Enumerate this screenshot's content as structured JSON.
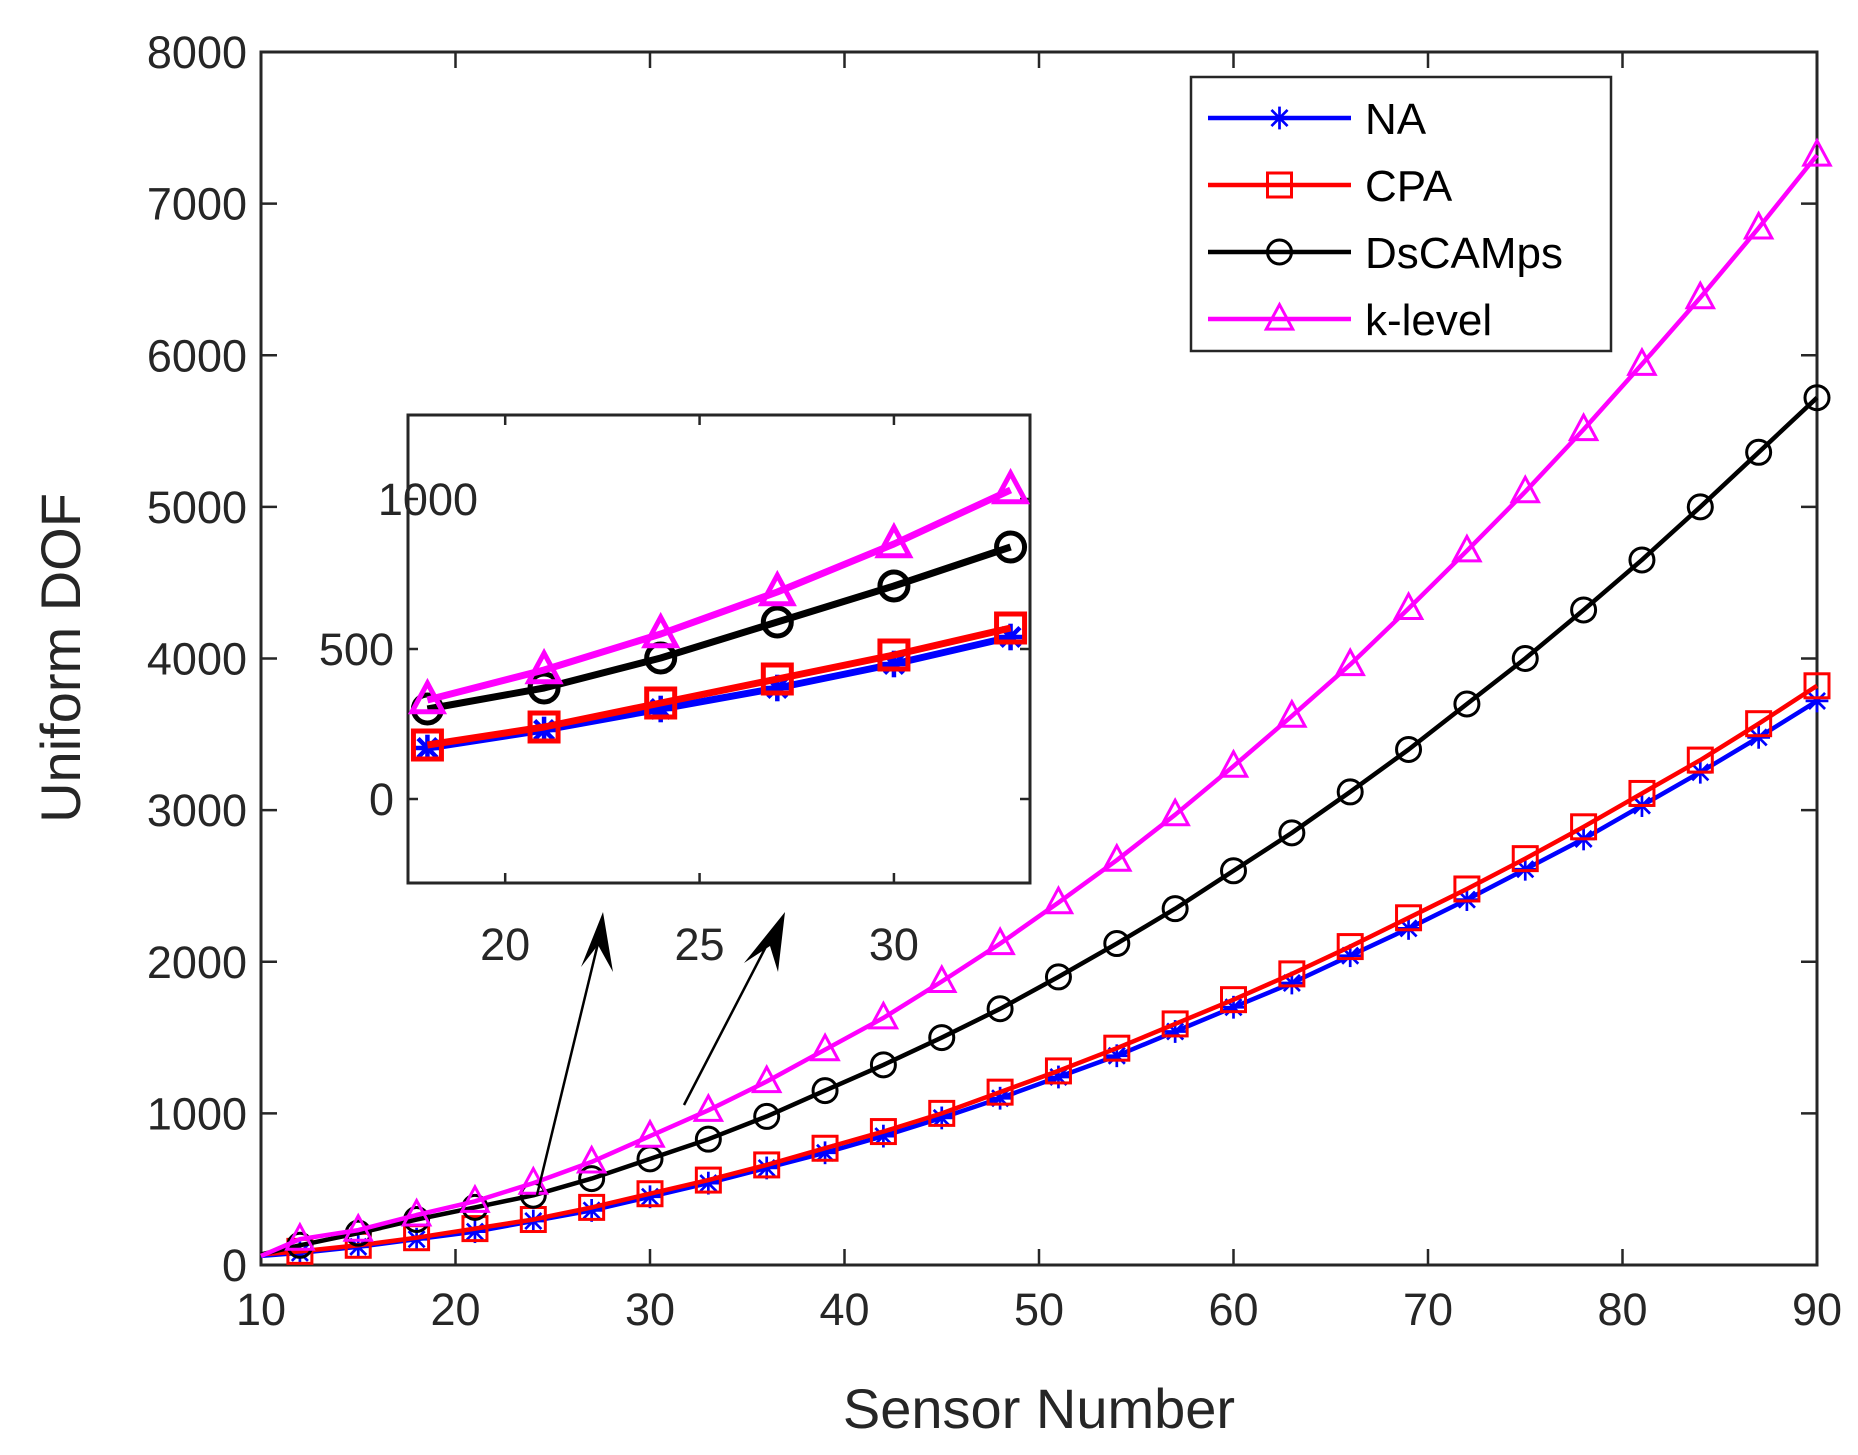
{
  "chart_data": {
    "type": "line",
    "xlabel": "Sensor Number",
    "ylabel": "Uniform DOF",
    "xlim": [
      10,
      90
    ],
    "ylim": [
      0,
      8000
    ],
    "xticks": [
      "10",
      "20",
      "30",
      "40",
      "50",
      "60",
      "70",
      "80",
      "90"
    ],
    "yticks": [
      "0",
      "1000",
      "2000",
      "3000",
      "4000",
      "5000",
      "6000",
      "7000",
      "8000"
    ],
    "legend_position": "top-right",
    "x": [
      10,
      12,
      15,
      18,
      21,
      24,
      27,
      30,
      33,
      36,
      39,
      42,
      45,
      48,
      51,
      54,
      57,
      60,
      63,
      66,
      69,
      72,
      75,
      78,
      81,
      84,
      87,
      90
    ],
    "series": [
      {
        "name": "NA",
        "color": "#0000ff",
        "marker": "asterisk",
        "values": [
          60,
          80,
          120,
          170,
          220,
          290,
          360,
          450,
          540,
          640,
          740,
          850,
          970,
          1100,
          1240,
          1380,
          1540,
          1700,
          1860,
          2040,
          2220,
          2410,
          2610,
          2810,
          3030,
          3250,
          3480,
          3720
        ]
      },
      {
        "name": "CPA",
        "color": "#ff0000",
        "marker": "square",
        "values": [
          70,
          90,
          130,
          180,
          240,
          300,
          380,
          470,
          560,
          660,
          770,
          880,
          1000,
          1140,
          1280,
          1430,
          1590,
          1750,
          1920,
          2100,
          2290,
          2480,
          2680,
          2890,
          3110,
          3330,
          3570,
          3820
        ]
      },
      {
        "name": "DsCAMps",
        "color": "#000000",
        "marker": "circle",
        "values": [
          70,
          130,
          210,
          300,
          380,
          460,
          570,
          700,
          830,
          980,
          1150,
          1320,
          1500,
          1690,
          1900,
          2120,
          2350,
          2600,
          2850,
          3120,
          3400,
          3700,
          4000,
          4320,
          4650,
          5000,
          5360,
          5720
        ]
      },
      {
        "name": "k-level",
        "color": "#ff00ff",
        "marker": "triangle",
        "values": [
          60,
          170,
          230,
          330,
          420,
          540,
          680,
          850,
          1020,
          1210,
          1420,
          1630,
          1870,
          2120,
          2390,
          2670,
          2970,
          3290,
          3620,
          3960,
          4330,
          4710,
          5100,
          5510,
          5940,
          6380,
          6840,
          7320
        ]
      }
    ],
    "inset": {
      "xlim": [
        17.5,
        33.5
      ],
      "ylim": [
        -280,
        1280
      ],
      "xticks": [
        "20",
        "25",
        "30"
      ],
      "yticks": [
        "0",
        "500",
        "1000"
      ],
      "x": [
        18,
        21,
        24,
        27,
        30,
        33
      ],
      "series": [
        {
          "name": "NA",
          "values": [
            170,
            230,
            300,
            370,
            450,
            540
          ]
        },
        {
          "name": "CPA",
          "values": [
            180,
            240,
            320,
            400,
            480,
            570
          ]
        },
        {
          "name": "DsCAMps",
          "values": [
            300,
            370,
            470,
            590,
            710,
            840
          ]
        },
        {
          "name": "k-level",
          "values": [
            330,
            430,
            550,
            690,
            850,
            1030
          ]
        }
      ]
    }
  }
}
